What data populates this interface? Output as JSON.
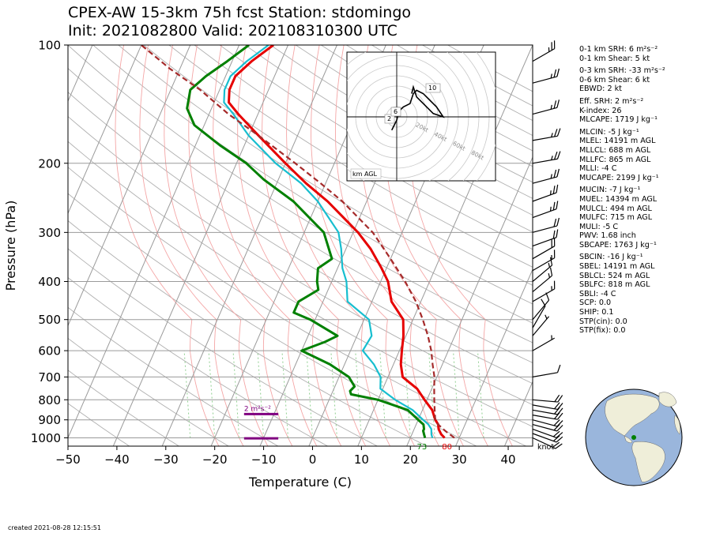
{
  "header": {
    "line1": "CPEX-AW 15-3km  75h fcst  Station: stdomingo",
    "line2": "Init: 2021082800  Valid: 202108310300 UTC"
  },
  "footer": {
    "created": "created 2021-08-28 12:15:51"
  },
  "colors": {
    "temperature": "#e60000",
    "dewpoint": "#008000",
    "wetbulb": "#17becf",
    "parcel": "#a52a2a",
    "srh": "#800080",
    "dry_adiabat": "#b0b0b0",
    "moist_adiabat": "#f4a6a6",
    "mixing_ratio": "#8fcf8f",
    "ocean": "#9ab6dc",
    "land": "#efeed9"
  },
  "chart_data": {
    "type": "line",
    "xlabel": "Temperature (C)",
    "ylabel": "Pressure (hPa)",
    "xlim": [
      -50,
      45
    ],
    "ylim": [
      1050,
      100
    ],
    "y_scale": "log",
    "x_ticks": [
      -50,
      -40,
      -30,
      -20,
      -10,
      0,
      10,
      20,
      30,
      40
    ],
    "y_ticks": [
      100,
      200,
      300,
      400,
      500,
      600,
      700,
      800,
      900,
      1000
    ],
    "grid": true,
    "skew_note": "skewed isotherms",
    "series": [
      {
        "name": "temperature",
        "points": [
          [
            27,
            1000
          ],
          [
            26,
            980
          ],
          [
            25,
            950
          ],
          [
            24.5,
            925
          ],
          [
            23.5,
            900
          ],
          [
            22,
            850
          ],
          [
            19.5,
            800
          ],
          [
            17,
            750
          ],
          [
            13,
            700
          ],
          [
            11.5,
            650
          ],
          [
            10.5,
            600
          ],
          [
            9.5,
            550
          ],
          [
            8,
            500
          ],
          [
            4,
            450
          ],
          [
            1.5,
            400
          ],
          [
            -1,
            370
          ],
          [
            -5,
            330
          ],
          [
            -9,
            300
          ],
          [
            -18,
            250
          ],
          [
            -24,
            225
          ],
          [
            -30,
            200
          ],
          [
            -38,
            170
          ],
          [
            -44,
            150
          ],
          [
            -47,
            140
          ],
          [
            -48,
            130
          ],
          [
            -48,
            120
          ],
          [
            -46,
            110
          ],
          [
            -43,
            100
          ]
        ]
      },
      {
        "name": "dewpoint",
        "points": [
          [
            23,
            1000
          ],
          [
            22.5,
            980
          ],
          [
            22,
            960
          ],
          [
            22,
            950
          ],
          [
            21.5,
            925
          ],
          [
            20,
            900
          ],
          [
            17,
            850
          ],
          [
            10,
            800
          ],
          [
            4,
            775
          ],
          [
            3.5,
            760
          ],
          [
            4,
            740
          ],
          [
            2,
            700
          ],
          [
            -3,
            650
          ],
          [
            -10,
            600
          ],
          [
            -6,
            570
          ],
          [
            -4,
            550
          ],
          [
            -11,
            500
          ],
          [
            -15,
            480
          ],
          [
            -15,
            450
          ],
          [
            -12,
            420
          ],
          [
            -13,
            400
          ],
          [
            -14,
            370
          ],
          [
            -12,
            350
          ],
          [
            -16,
            300
          ],
          [
            -25,
            250
          ],
          [
            -33,
            220
          ],
          [
            -38,
            200
          ],
          [
            -45,
            180
          ],
          [
            -52,
            160
          ],
          [
            -55,
            145
          ],
          [
            -56,
            130
          ],
          [
            -54,
            120
          ],
          [
            -51,
            110
          ],
          [
            -48,
            100
          ]
        ]
      },
      {
        "name": "wetbulb",
        "points": [
          [
            24.5,
            1000
          ],
          [
            24,
            980
          ],
          [
            23.5,
            950
          ],
          [
            22.5,
            925
          ],
          [
            21,
            900
          ],
          [
            18,
            850
          ],
          [
            13.5,
            800
          ],
          [
            9.5,
            750
          ],
          [
            8.5,
            700
          ],
          [
            6,
            650
          ],
          [
            2.5,
            600
          ],
          [
            3,
            550
          ],
          [
            1,
            500
          ],
          [
            -5,
            450
          ],
          [
            -7,
            400
          ],
          [
            -9,
            370
          ],
          [
            -11,
            330
          ],
          [
            -13,
            300
          ],
          [
            -20,
            250
          ],
          [
            -25,
            225
          ],
          [
            -32,
            200
          ],
          [
            -40,
            170
          ],
          [
            -45,
            150
          ],
          [
            -48,
            140
          ],
          [
            -49,
            130
          ],
          [
            -49,
            120
          ],
          [
            -47,
            110
          ],
          [
            -44,
            100
          ]
        ]
      },
      {
        "name": "parcel",
        "points": [
          [
            29,
            1000
          ],
          [
            26.5,
            960
          ],
          [
            24.5,
            925
          ],
          [
            23.5,
            900
          ],
          [
            22.5,
            850
          ],
          [
            21.5,
            800
          ],
          [
            20.5,
            750
          ],
          [
            19.5,
            700
          ],
          [
            18,
            650
          ],
          [
            16.5,
            600
          ],
          [
            14.5,
            550
          ],
          [
            12,
            500
          ],
          [
            9,
            450
          ],
          [
            5,
            400
          ],
          [
            0,
            350
          ],
          [
            -6,
            300
          ],
          [
            -15,
            250
          ],
          [
            -21,
            225
          ],
          [
            -28,
            200
          ],
          [
            -38,
            170
          ],
          [
            -46,
            150
          ],
          [
            -54,
            130
          ],
          [
            -62,
            115
          ],
          [
            -70,
            100
          ]
        ]
      }
    ],
    "surface_labels": {
      "dewpoint": "73",
      "temperature": "80"
    },
    "srh_bars": [
      {
        "pressure": 870,
        "x_from": -14,
        "x_to": -7,
        "label": "2 m²s⁻²"
      },
      {
        "pressure": 1003,
        "x_from": -14,
        "x_to": -7,
        "label": ""
      }
    ],
    "wind_barbs": [
      {
        "p": 1000,
        "spd": 20,
        "dir": 115
      },
      {
        "p": 975,
        "spd": 20,
        "dir": 110
      },
      {
        "p": 950,
        "spd": 20,
        "dir": 110
      },
      {
        "p": 925,
        "spd": 20,
        "dir": 105
      },
      {
        "p": 900,
        "spd": 20,
        "dir": 105
      },
      {
        "p": 875,
        "spd": 20,
        "dir": 100
      },
      {
        "p": 850,
        "spd": 20,
        "dir": 100
      },
      {
        "p": 825,
        "spd": 20,
        "dir": 100
      },
      {
        "p": 800,
        "spd": 20,
        "dir": 95
      },
      {
        "p": 700,
        "spd": 10,
        "dir": 80
      },
      {
        "p": 600,
        "spd": 5,
        "dir": 60
      },
      {
        "p": 550,
        "spd": 5,
        "dir": 40
      },
      {
        "p": 525,
        "spd": 10,
        "dir": 30
      },
      {
        "p": 500,
        "spd": 10,
        "dir": 40
      },
      {
        "p": 450,
        "spd": 15,
        "dir": 60
      },
      {
        "p": 425,
        "spd": 15,
        "dir": 50
      },
      {
        "p": 400,
        "spd": 15,
        "dir": 50
      },
      {
        "p": 375,
        "spd": 15,
        "dir": 60
      },
      {
        "p": 350,
        "spd": 20,
        "dir": 60
      },
      {
        "p": 325,
        "spd": 20,
        "dir": 70
      },
      {
        "p": 300,
        "spd": 20,
        "dir": 75
      },
      {
        "p": 275,
        "spd": 25,
        "dir": 70
      },
      {
        "p": 250,
        "spd": 25,
        "dir": 70
      },
      {
        "p": 225,
        "spd": 25,
        "dir": 75
      },
      {
        "p": 200,
        "spd": 25,
        "dir": 80
      },
      {
        "p": 175,
        "spd": 25,
        "dir": 80
      },
      {
        "p": 150,
        "spd": 25,
        "dir": 75
      },
      {
        "p": 125,
        "spd": 25,
        "dir": 75
      },
      {
        "p": 110,
        "spd": 25,
        "dir": 60
      }
    ],
    "barb_units": "knot",
    "hodograph": {
      "ring_labels": [
        "20kt",
        "40kt",
        "60kt",
        "80kt"
      ],
      "height_labels": [
        "2",
        "6",
        "10"
      ],
      "footer_label": "km AGL",
      "points": [
        [
          -3,
          -8
        ],
        [
          -2,
          -6
        ],
        [
          -1,
          -4
        ],
        [
          0,
          -2
        ],
        [
          1,
          2
        ],
        [
          2,
          4
        ],
        [
          4,
          6
        ],
        [
          8,
          8
        ],
        [
          10,
          14
        ],
        [
          12,
          16
        ],
        [
          16,
          14
        ],
        [
          20,
          10
        ],
        [
          24,
          6
        ],
        [
          28,
          0
        ],
        [
          22,
          2
        ],
        [
          16,
          8
        ],
        [
          12,
          12
        ],
        [
          10,
          18
        ],
        [
          9,
          14
        ]
      ]
    }
  },
  "params": [
    "0-1 km SRH: 6 m²s⁻²",
    "0-1 km Shear: 5 kt",
    "",
    "0-3 km SRH: -33 m²s⁻²",
    "0-6 km Shear: 6 kt",
    "EBWD: 2 kt",
    "",
    "Eff. SRH: 2 m²s⁻²",
    "K-index: 26",
    "MLCAPE: 1719 J kg⁻¹",
    "",
    "MLCIN: -5 J kg⁻¹",
    "MLEL: 14191 m AGL",
    "MLLCL: 688 m AGL",
    "MLLFC: 865 m AGL",
    "MLLI: -4 C",
    "MUCAPE: 2199 J kg⁻¹",
    "",
    "MUCIN: -7 J kg⁻¹",
    "MUEL: 14394 m AGL",
    "MULCL: 494 m AGL",
    "MULFC: 715 m AGL",
    "MULI: -5 C",
    "PWV: 1.68 inch",
    "SBCAPE: 1763 J kg⁻¹",
    "",
    "SBCIN: -16 J kg⁻¹",
    "SBEL: 14191 m AGL",
    "SBLCL: 524 m AGL",
    "SBLFC: 818 m AGL",
    "SBLI: -4 C",
    "SCP: 0.0",
    "SHIP: 0.1",
    "STP(cin): 0.0",
    "STP(fix): 0.0"
  ]
}
